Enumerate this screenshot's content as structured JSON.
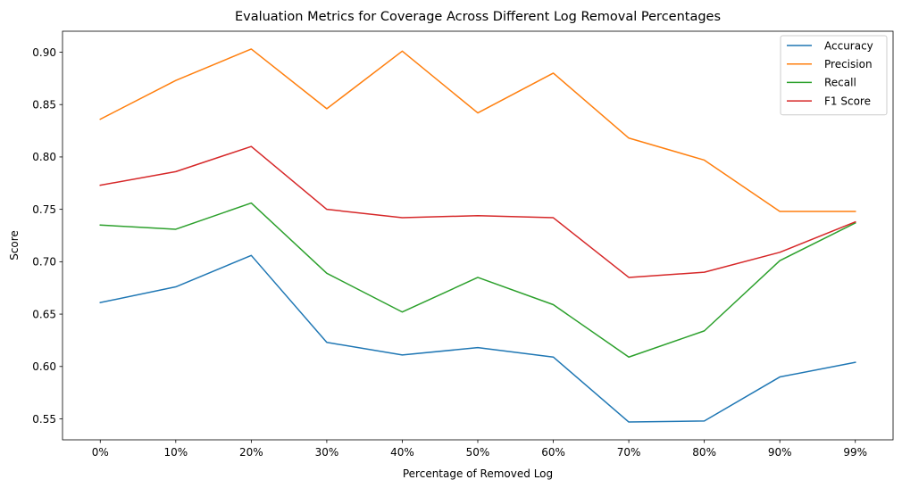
{
  "chart_data": {
    "type": "line",
    "title": "Evaluation Metrics for Coverage Across Different Log Removal Percentages",
    "xlabel": "Percentage of Removed Log",
    "ylabel": "Score",
    "categories": [
      "0%",
      "10%",
      "20%",
      "30%",
      "40%",
      "50%",
      "60%",
      "70%",
      "80%",
      "90%",
      "99%"
    ],
    "ylim": [
      0.53,
      0.92
    ],
    "yticks": [
      0.55,
      0.6,
      0.65,
      0.7,
      0.75,
      0.8,
      0.85,
      0.9
    ],
    "ytick_labels": [
      "0.55",
      "0.60",
      "0.65",
      "0.70",
      "0.75",
      "0.80",
      "0.85",
      "0.90"
    ],
    "grid": false,
    "legend_position": "top-right",
    "series": [
      {
        "name": "Accuracy",
        "color": "#1f77b4",
        "values": [
          0.661,
          0.676,
          0.706,
          0.623,
          0.611,
          0.618,
          0.609,
          0.547,
          0.548,
          0.59,
          0.604
        ]
      },
      {
        "name": "Precision",
        "color": "#ff7f0e",
        "values": [
          0.836,
          0.873,
          0.903,
          0.846,
          0.901,
          0.842,
          0.88,
          0.818,
          0.797,
          0.748,
          0.748
        ]
      },
      {
        "name": "Recall",
        "color": "#2ca02c",
        "values": [
          0.735,
          0.731,
          0.756,
          0.689,
          0.652,
          0.685,
          0.659,
          0.609,
          0.634,
          0.701,
          0.737
        ]
      },
      {
        "name": "F1 Score",
        "color": "#d62728",
        "values": [
          0.773,
          0.786,
          0.81,
          0.75,
          0.742,
          0.744,
          0.742,
          0.685,
          0.69,
          0.709,
          0.738
        ]
      }
    ]
  }
}
